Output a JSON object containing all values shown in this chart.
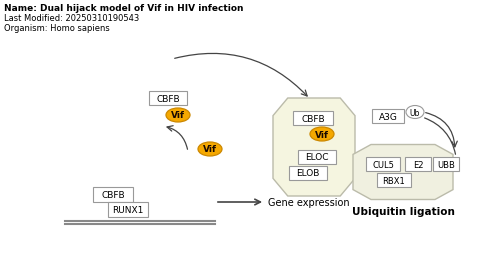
{
  "title_lines": [
    "Name: Dual hijack model of Vif in HIV infection",
    "Last Modified: 20250310190543",
    "Organism: Homo sapiens"
  ],
  "bg_color": "#ffffff",
  "box_color": "#ffffff",
  "box_edge": "#999999",
  "octagon_fill": "#f5f5e0",
  "octagon_edge": "#bbbbaa",
  "oct2_fill": "#f0f0e0",
  "oct2_edge": "#bbbbaa",
  "vif_fill": "#f5a800",
  "vif_edge": "#cc8800",
  "ub_fill": "#ffffff",
  "ub_edge": "#999999",
  "arrow_color": "#444444",
  "text_color": "#000000",
  "gene_line_color": "#888888",
  "ubiquitin_label": "Ubiquitin ligation"
}
